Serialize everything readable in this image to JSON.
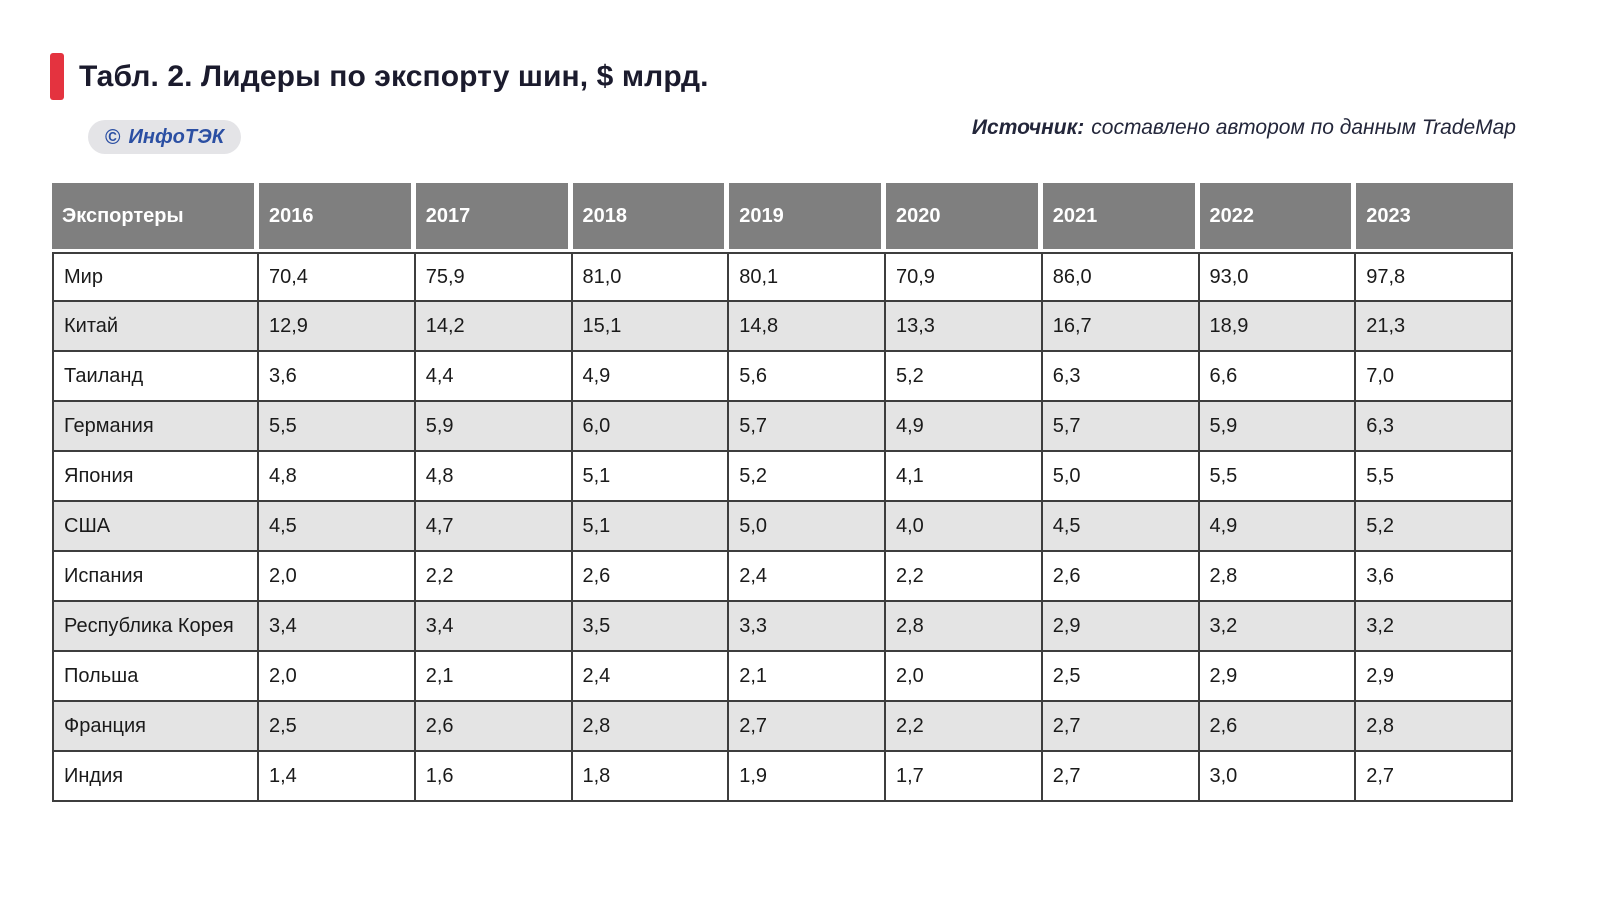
{
  "header": {
    "title": "Табл. 2. Лидеры по экспорту шин, $ млрд.",
    "accent_color": "#e4333f",
    "badge": {
      "copyright": "©",
      "label": "ИнфоТЭК",
      "text_color": "#2b4fa3",
      "bg_color": "#e4e4e7"
    },
    "source": {
      "prefix": "Источник:",
      "text": "составлено автором по данным TradeMap"
    }
  },
  "table": {
    "header_bg": "#7f7f7f",
    "header_text_color": "#ffffff",
    "zebra_bg": "#e4e4e4",
    "border_color": "#3d3d3d",
    "columns": [
      "Экспортеры",
      "2016",
      "2017",
      "2018",
      "2019",
      "2020",
      "2021",
      "2022",
      "2023"
    ],
    "rows": [
      {
        "name": "Мир",
        "values": [
          "70,4",
          "75,9",
          "81,0",
          "80,1",
          "70,9",
          "86,0",
          "93,0",
          "97,8"
        ]
      },
      {
        "name": "Китай",
        "values": [
          "12,9",
          "14,2",
          "15,1",
          "14,8",
          "13,3",
          "16,7",
          "18,9",
          "21,3"
        ]
      },
      {
        "name": "Таиланд",
        "values": [
          "3,6",
          "4,4",
          "4,9",
          "5,6",
          "5,2",
          "6,3",
          "6,6",
          "7,0"
        ]
      },
      {
        "name": "Германия",
        "values": [
          "5,5",
          "5,9",
          "6,0",
          "5,7",
          "4,9",
          "5,7",
          "5,9",
          "6,3"
        ]
      },
      {
        "name": "Япония",
        "values": [
          "4,8",
          "4,8",
          "5,1",
          "5,2",
          "4,1",
          "5,0",
          "5,5",
          "5,5"
        ]
      },
      {
        "name": "США",
        "values": [
          "4,5",
          "4,7",
          "5,1",
          "5,0",
          "4,0",
          "4,5",
          "4,9",
          "5,2"
        ]
      },
      {
        "name": "Испания",
        "values": [
          "2,0",
          "2,2",
          "2,6",
          "2,4",
          "2,2",
          "2,6",
          "2,8",
          "3,6"
        ]
      },
      {
        "name": "Республика Корея",
        "values": [
          "3,4",
          "3,4",
          "3,5",
          "3,3",
          "2,8",
          "2,9",
          "3,2",
          "3,2"
        ]
      },
      {
        "name": "Польша",
        "values": [
          "2,0",
          "2,1",
          "2,4",
          "2,1",
          "2,0",
          "2,5",
          "2,9",
          "2,9"
        ]
      },
      {
        "name": "Франция",
        "values": [
          "2,5",
          "2,6",
          "2,8",
          "2,7",
          "2,2",
          "2,7",
          "2,6",
          "2,8"
        ]
      },
      {
        "name": "Индия",
        "values": [
          "1,4",
          "1,6",
          "1,8",
          "1,9",
          "1,7",
          "2,7",
          "3,0",
          "2,7"
        ]
      }
    ]
  },
  "chart_data": {
    "type": "table",
    "title": "Табл. 2. Лидеры по экспорту шин, $ млрд.",
    "categories": [
      2016,
      2017,
      2018,
      2019,
      2020,
      2021,
      2022,
      2023
    ],
    "row_header": "Экспортеры",
    "series": [
      {
        "name": "Мир",
        "values": [
          70.4,
          75.9,
          81.0,
          80.1,
          70.9,
          86.0,
          93.0,
          97.8
        ]
      },
      {
        "name": "Китай",
        "values": [
          12.9,
          14.2,
          15.1,
          14.8,
          13.3,
          16.7,
          18.9,
          21.3
        ]
      },
      {
        "name": "Таиланд",
        "values": [
          3.6,
          4.4,
          4.9,
          5.6,
          5.2,
          6.3,
          6.6,
          7.0
        ]
      },
      {
        "name": "Германия",
        "values": [
          5.5,
          5.9,
          6.0,
          5.7,
          4.9,
          5.7,
          5.9,
          6.3
        ]
      },
      {
        "name": "Япония",
        "values": [
          4.8,
          4.8,
          5.1,
          5.2,
          4.1,
          5.0,
          5.5,
          5.5
        ]
      },
      {
        "name": "США",
        "values": [
          4.5,
          4.7,
          5.1,
          5.0,
          4.0,
          4.5,
          4.9,
          5.2
        ]
      },
      {
        "name": "Испания",
        "values": [
          2.0,
          2.2,
          2.6,
          2.4,
          2.2,
          2.6,
          2.8,
          3.6
        ]
      },
      {
        "name": "Республика Корея",
        "values": [
          3.4,
          3.4,
          3.5,
          3.3,
          2.8,
          2.9,
          3.2,
          3.2
        ]
      },
      {
        "name": "Польша",
        "values": [
          2.0,
          2.1,
          2.4,
          2.1,
          2.0,
          2.5,
          2.9,
          2.9
        ]
      },
      {
        "name": "Франция",
        "values": [
          2.5,
          2.6,
          2.8,
          2.7,
          2.2,
          2.7,
          2.6,
          2.8
        ]
      },
      {
        "name": "Индия",
        "values": [
          1.4,
          1.6,
          1.8,
          1.9,
          1.7,
          2.7,
          3.0,
          2.7
        ]
      }
    ],
    "units": "$ млрд",
    "decimal_separator": ","
  }
}
